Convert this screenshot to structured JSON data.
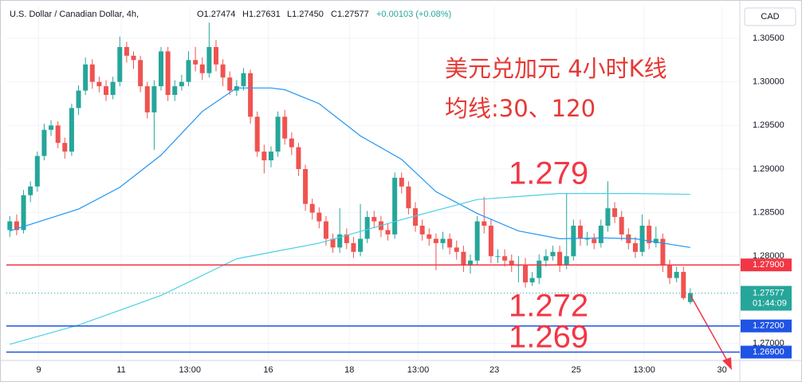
{
  "header": {
    "symbol": "U.S. Dollar / Canadian Dollar, 4h,",
    "ohlc": [
      "O1.27474",
      "H1.27631",
      "L1.27450",
      "C1.27577"
    ],
    "change": "+0.00103 (+0.08%)",
    "currency": "CAD"
  },
  "notes": {
    "title": "美元兑加元 4小时K线",
    "subtitle": "均线:30、120"
  },
  "chart_data": {
    "type": "candlestick",
    "up_color": "#26a69a",
    "down_color": "#ef5350",
    "open": [
      1.283,
      1.284,
      1.283,
      1.287,
      1.288,
      1.2915,
      1.2945,
      1.295,
      1.293,
      1.292,
      1.297,
      1.299,
      1.302,
      1.3,
      1.2995,
      1.2985,
      1.3,
      1.304,
      1.303,
      1.3025,
      1.2995,
      1.2965,
      1.2995,
      1.3035,
      1.2985,
      1.2995,
      1.3,
      1.3025,
      1.302,
      1.301,
      1.304,
      1.302,
      1.3005,
      1.299,
      1.2995,
      1.301,
      1.296,
      1.292,
      1.291,
      1.292,
      1.296,
      1.2935,
      1.2925,
      1.29,
      1.286,
      1.285,
      1.284,
      1.282,
      1.281,
      1.2825,
      1.2815,
      1.2805,
      1.282,
      1.2845,
      1.284,
      1.283,
      1.2825,
      1.289,
      1.288,
      1.2855,
      1.2835,
      1.2825,
      1.282,
      1.2815,
      1.282,
      1.281,
      1.2805,
      1.279,
      1.2795,
      1.284,
      1.2835,
      1.28,
      1.28,
      1.2795,
      1.279,
      1.279,
      1.277,
      1.2775,
      1.2795,
      1.28,
      1.2805,
      1.279,
      1.28,
      1.2835,
      1.282,
      1.282,
      1.2815,
      1.2835,
      1.2855,
      1.2845,
      1.2825,
      1.2815,
      1.2805,
      1.2835,
      1.2815,
      1.282,
      1.279,
      1.2775,
      1.2782,
      1.27474
    ],
    "high": [
      1.2846,
      1.2848,
      1.2876,
      1.2886,
      1.292,
      1.2952,
      1.2956,
      1.2955,
      1.2936,
      1.2975,
      1.2996,
      1.3028,
      1.3026,
      1.3006,
      1.3002,
      1.3006,
      1.3052,
      1.3046,
      1.3035,
      1.303,
      1.3,
      1.3002,
      1.304,
      1.304,
      1.3002,
      1.3008,
      1.3035,
      1.304,
      1.3028,
      1.3068,
      1.3048,
      1.3026,
      1.3012,
      1.3002,
      1.3016,
      1.3014,
      1.2966,
      1.2928,
      1.2926,
      1.2966,
      1.2968,
      1.2942,
      1.293,
      1.2905,
      1.2866,
      1.2856,
      1.2846,
      1.2826,
      1.2855,
      1.2832,
      1.2822,
      1.286,
      1.2852,
      1.2852,
      1.2846,
      1.2838,
      1.2896,
      1.2896,
      1.2886,
      1.2862,
      1.2842,
      1.2832,
      1.2826,
      1.2828,
      1.2826,
      1.2818,
      1.2812,
      1.2802,
      1.2846,
      1.2868,
      1.2842,
      1.2808,
      1.2808,
      1.2802,
      1.28,
      1.2798,
      1.2782,
      1.2802,
      1.2808,
      1.2812,
      1.2812,
      1.2872,
      1.2842,
      1.2842,
      1.2828,
      1.2826,
      1.2842,
      1.2886,
      1.2862,
      1.2852,
      1.2832,
      1.2822,
      1.2848,
      1.2842,
      1.2834,
      1.2826,
      1.2796,
      1.2788,
      1.2788,
      1.27631
    ],
    "low": [
      1.2822,
      1.2824,
      1.2826,
      1.2862,
      1.2874,
      1.291,
      1.2938,
      1.2924,
      1.2912,
      1.2915,
      1.2962,
      1.2985,
      1.2992,
      1.2988,
      1.2978,
      1.298,
      1.2995,
      1.3022,
      1.3015,
      1.2988,
      1.2958,
      1.2922,
      1.299,
      1.2978,
      1.2978,
      1.299,
      1.2995,
      1.3012,
      1.3002,
      1.3005,
      1.3012,
      1.2995,
      1.2985,
      1.2984,
      1.299,
      1.2952,
      1.2914,
      1.2895,
      1.2902,
      1.2914,
      1.2928,
      1.2916,
      1.2892,
      1.2852,
      1.2842,
      1.2832,
      1.2812,
      1.2804,
      1.2804,
      1.2808,
      1.2798,
      1.28,
      1.2815,
      1.2832,
      1.2822,
      1.2818,
      1.282,
      1.2872,
      1.2848,
      1.2828,
      1.2818,
      1.2812,
      1.2784,
      1.2808,
      1.2802,
      1.2796,
      1.2782,
      1.278,
      1.279,
      1.2826,
      1.2792,
      1.2792,
      1.2788,
      1.2782,
      1.277,
      1.2764,
      1.2766,
      1.2768,
      1.2788,
      1.2795,
      1.2782,
      1.2785,
      1.2795,
      1.2812,
      1.2812,
      1.2808,
      1.281,
      1.2828,
      1.2838,
      1.2818,
      1.2808,
      1.2798,
      1.28,
      1.2808,
      1.281,
      1.2782,
      1.2768,
      1.277,
      1.275,
      1.2745
    ],
    "close": [
      1.284,
      1.283,
      1.287,
      1.288,
      1.2915,
      1.2945,
      1.295,
      1.293,
      1.292,
      1.297,
      1.299,
      1.302,
      1.3,
      1.2995,
      1.2985,
      1.3,
      1.304,
      1.303,
      1.3025,
      1.2995,
      1.2965,
      1.2995,
      1.3035,
      1.2985,
      1.2995,
      1.3,
      1.3025,
      1.302,
      1.301,
      1.304,
      1.302,
      1.3005,
      1.299,
      1.2995,
      1.301,
      1.296,
      1.292,
      1.291,
      1.292,
      1.296,
      1.2935,
      1.2925,
      1.29,
      1.286,
      1.285,
      1.284,
      1.282,
      1.281,
      1.2825,
      1.2815,
      1.2805,
      1.282,
      1.2845,
      1.284,
      1.283,
      1.2825,
      1.289,
      1.288,
      1.2855,
      1.2835,
      1.2825,
      1.282,
      1.2815,
      1.282,
      1.281,
      1.2805,
      1.279,
      1.2795,
      1.284,
      1.2835,
      1.28,
      1.28,
      1.2795,
      1.279,
      1.279,
      1.277,
      1.2775,
      1.2795,
      1.28,
      1.2805,
      1.279,
      1.28,
      1.2835,
      1.282,
      1.282,
      1.2815,
      1.2835,
      1.2855,
      1.2845,
      1.2825,
      1.2815,
      1.2805,
      1.2835,
      1.2815,
      1.282,
      1.279,
      1.2775,
      1.2782,
      1.2752,
      1.27577
    ],
    "lines": [
      {
        "color": "#2196f3",
        "x": [
          0,
          10,
          16,
          22,
          28,
          33,
          38,
          40,
          45,
          51,
          57,
          62,
          68,
          74,
          80,
          86,
          91,
          99
        ],
        "values": [
          1.2829,
          1.2854,
          1.2879,
          1.2916,
          1.2966,
          1.2993,
          1.2993,
          1.2991,
          1.2975,
          1.2938,
          1.2911,
          1.2874,
          1.2849,
          1.2829,
          1.282,
          1.2821,
          1.282,
          1.281
        ]
      },
      {
        "color": "#4dd0e1",
        "x": [
          0,
          10,
          22,
          33,
          45,
          57,
          68,
          80,
          91,
          99
        ],
        "values": [
          1.2699,
          1.2721,
          1.2755,
          1.2797,
          1.2815,
          1.2842,
          1.2865,
          1.2872,
          1.2872,
          1.2871
        ]
      }
    ],
    "hlines": [
      {
        "value": 1.279,
        "label": "1.27900",
        "note": "1.279",
        "color": "#f23645"
      },
      {
        "value": 1.272,
        "label": "1.27200",
        "note": "1.272",
        "color": "#1e53e5"
      },
      {
        "value": 1.269,
        "label": "1.26900",
        "note": "1.269",
        "color": "#1e53e5"
      }
    ],
    "last_price": {
      "value": 1.27577,
      "label": "1.27577",
      "countdown": "01:44:09",
      "color": "#26a69a"
    },
    "xlim": [
      -0.5,
      106.2
    ],
    "xticks": [
      {
        "value": 4.2,
        "label": "9"
      },
      {
        "value": 16.2,
        "label": "11"
      },
      {
        "value": 26.2,
        "label": "13:00"
      },
      {
        "value": 37.6,
        "label": "16"
      },
      {
        "value": 49.4,
        "label": "18"
      },
      {
        "value": 59.4,
        "label": "13:00"
      },
      {
        "value": 70.5,
        "label": "23"
      },
      {
        "value": 82.4,
        "label": "25"
      },
      {
        "value": 92.3,
        "label": "13:00"
      },
      {
        "value": 103.6,
        "label": "30"
      }
    ],
    "ylim": [
      1.26804,
      1.30866
    ],
    "yticks": [
      {
        "value": 1.305,
        "label": "1.30500"
      },
      {
        "value": 1.3,
        "label": "1.30000"
      },
      {
        "value": 1.295,
        "label": "1.29500"
      },
      {
        "value": 1.29,
        "label": "1.29000"
      },
      {
        "value": 1.285,
        "label": "1.28500"
      },
      {
        "value": 1.28,
        "label": "1.28000"
      },
      {
        "value": 1.27,
        "label": "1.27000"
      }
    ]
  }
}
